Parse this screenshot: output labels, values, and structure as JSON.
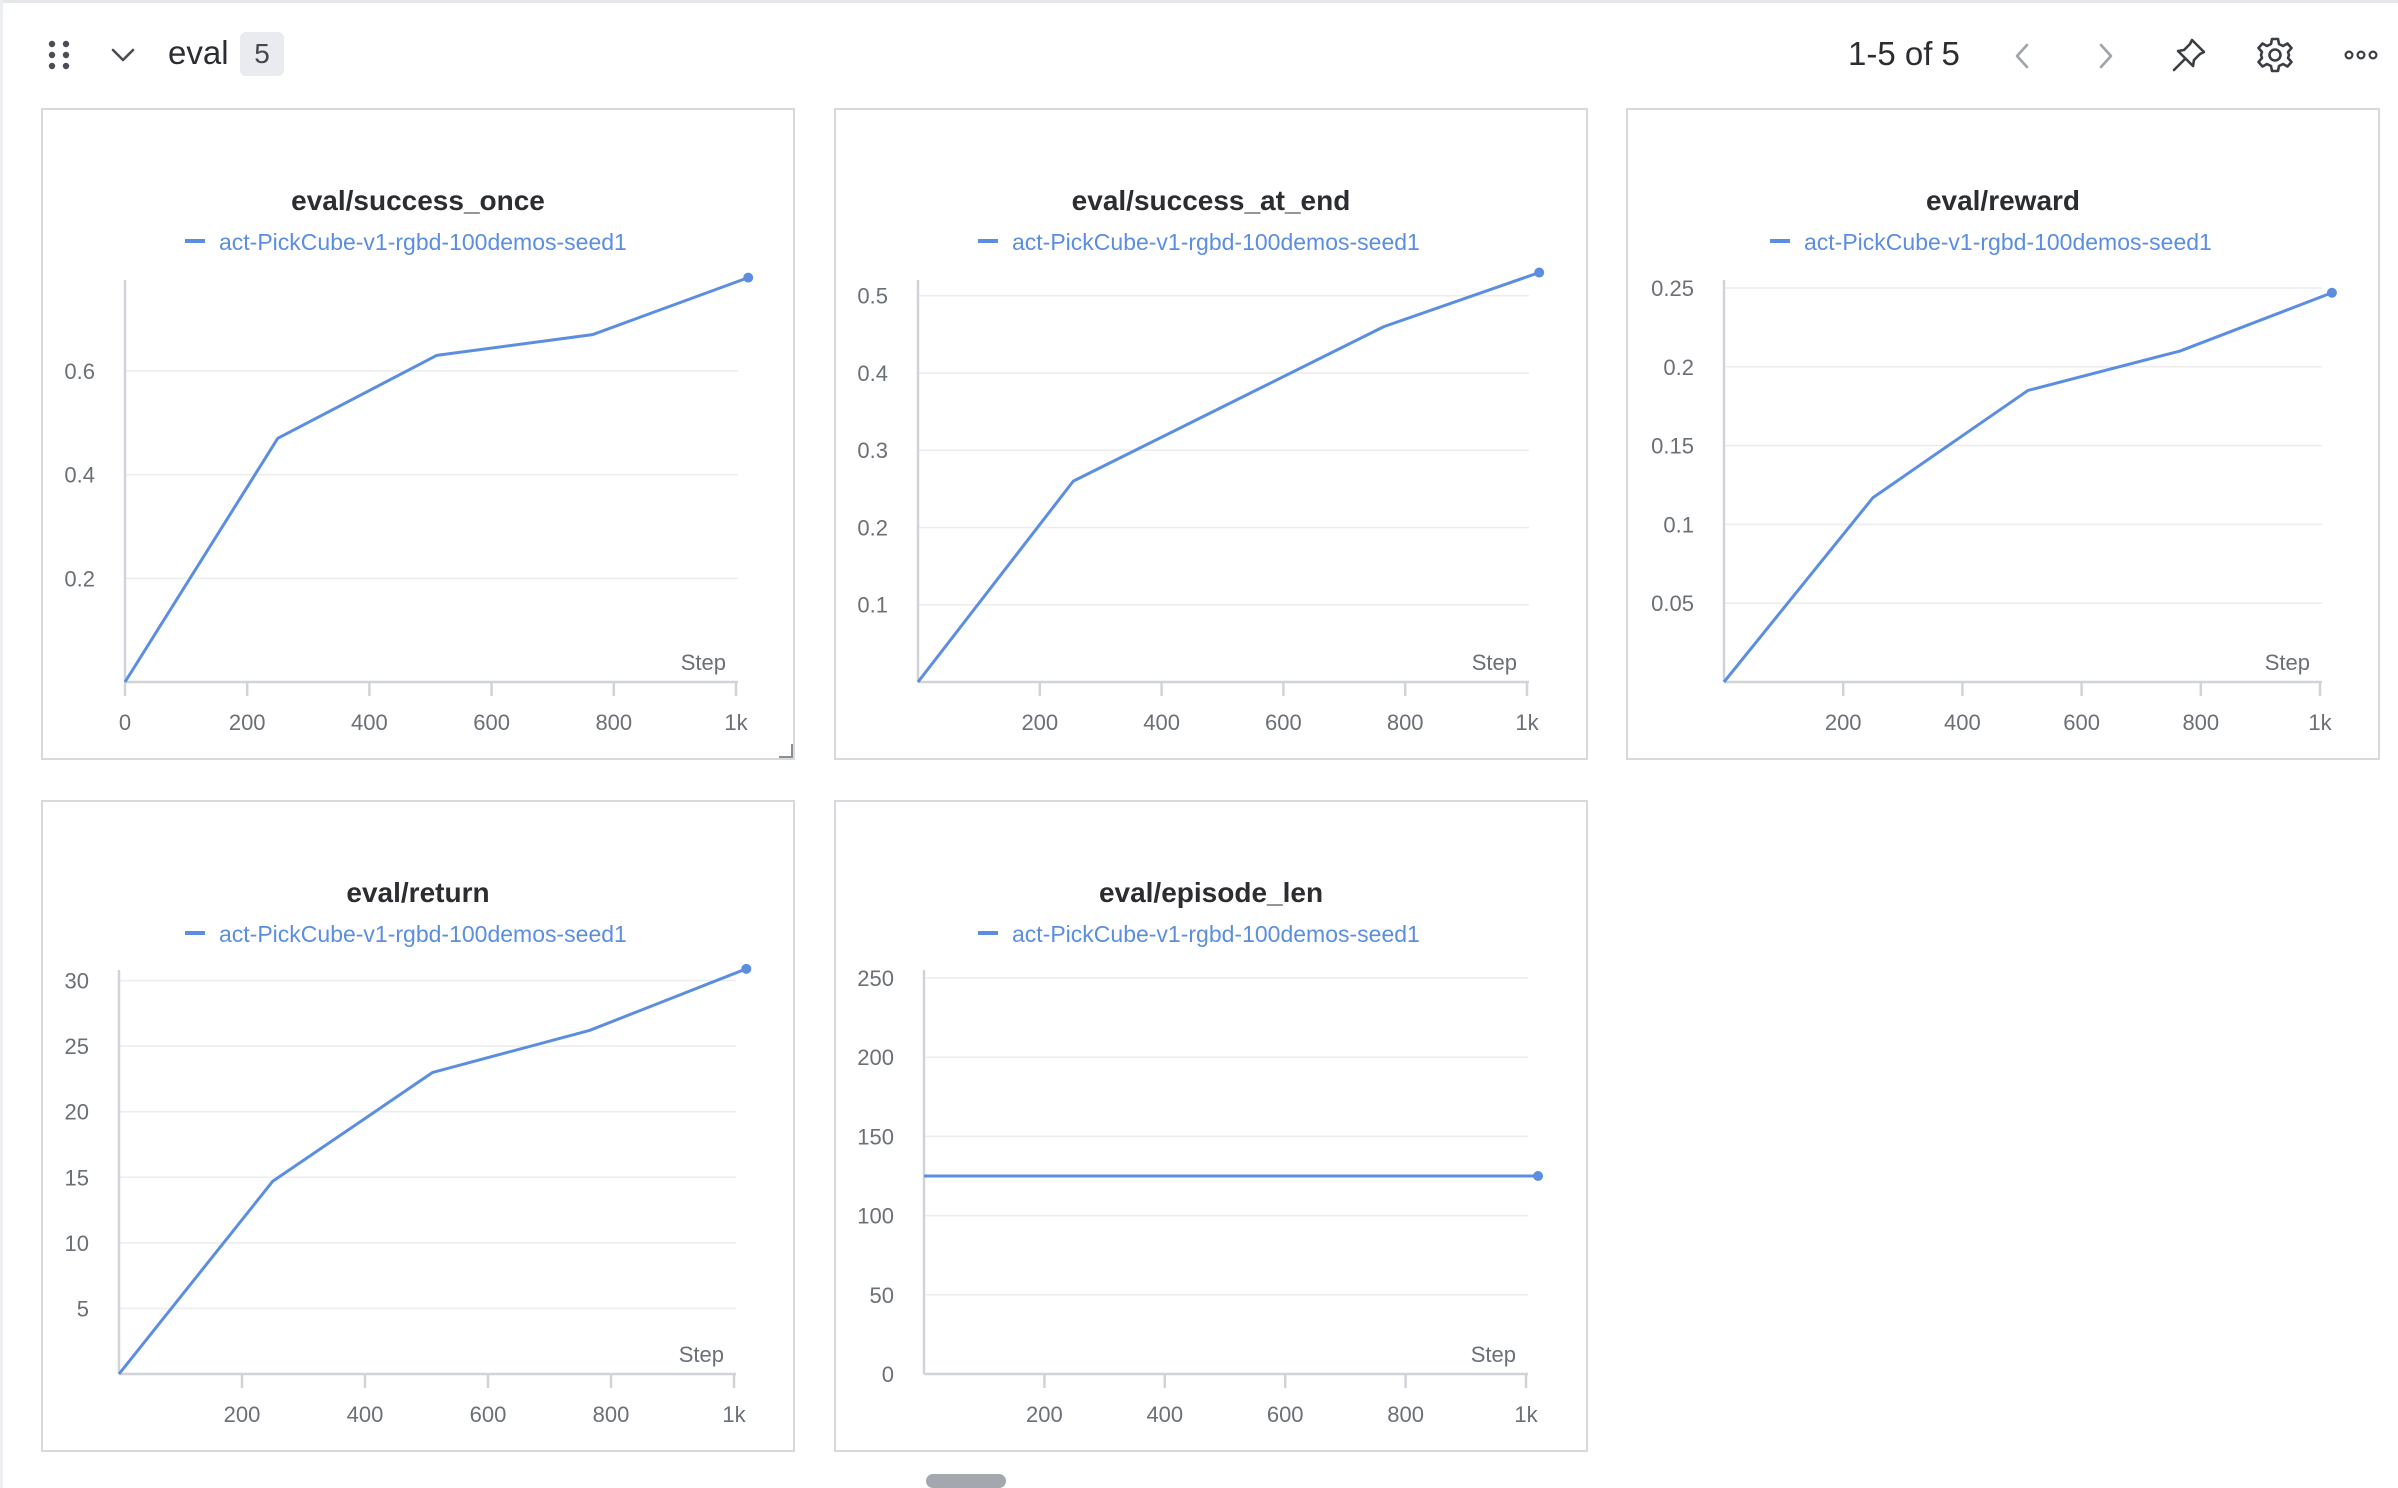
{
  "section": {
    "title": "eval",
    "count": "5"
  },
  "pagination": {
    "label": "1-5 of 5"
  },
  "icons": {
    "drag": "drag-handle-icon",
    "collapse": "chevron-down-icon",
    "prev": "chevron-left-icon",
    "next": "chevron-right-icon",
    "pin": "pin-icon",
    "settings": "gear-icon",
    "more": "more-horizontal-icon"
  },
  "colors": {
    "series": "#5b8ee0",
    "grid": "#ececec",
    "axis": "#d0d3d8",
    "tick_text": "#6b6f76"
  },
  "chart_data": [
    {
      "type": "line",
      "title": "eval/success_once",
      "xlabel": "Step",
      "ylabel": "",
      "legend": "top-center",
      "grid": true,
      "x_ticks": [
        "0",
        "200",
        "400",
        "600",
        "800",
        "1k"
      ],
      "x_tick_values": [
        0,
        200,
        400,
        600,
        800,
        1000
      ],
      "y_ticks": [
        "0.2",
        "0.4",
        "0.6"
      ],
      "y_tick_values": [
        0.2,
        0.4,
        0.6
      ],
      "xlim": [
        0,
        1000
      ],
      "ylim": [
        0.0,
        0.76
      ],
      "series": [
        {
          "name": "act-PickCube-v1-rgbd-100demos-seed1",
          "x": [
            0,
            250,
            510,
            765,
            1020
          ],
          "y": [
            0.0,
            0.47,
            0.63,
            0.67,
            0.78
          ]
        }
      ]
    },
    {
      "type": "line",
      "title": "eval/success_at_end",
      "xlabel": "Step",
      "ylabel": "",
      "legend": "top-center",
      "grid": true,
      "x_ticks": [
        "200",
        "400",
        "600",
        "800",
        "1k"
      ],
      "x_tick_values": [
        200,
        400,
        600,
        800,
        1000
      ],
      "y_ticks": [
        "0.1",
        "0.2",
        "0.3",
        "0.4",
        "0.5"
      ],
      "y_tick_values": [
        0.1,
        0.2,
        0.3,
        0.4,
        0.5
      ],
      "xlim": [
        0,
        1000
      ],
      "ylim": [
        0.0,
        0.51
      ],
      "series": [
        {
          "name": "act-PickCube-v1-rgbd-100demos-seed1",
          "x": [
            0,
            255,
            510,
            765,
            1020
          ],
          "y": [
            0.0,
            0.26,
            0.36,
            0.46,
            0.53
          ]
        }
      ]
    },
    {
      "type": "line",
      "title": "eval/reward",
      "xlabel": "Step",
      "ylabel": "",
      "legend": "top-center",
      "grid": true,
      "x_ticks": [
        "200",
        "400",
        "600",
        "800",
        "1k"
      ],
      "x_tick_values": [
        200,
        400,
        600,
        800,
        1000
      ],
      "y_ticks": [
        "0.05",
        "0.1",
        "0.15",
        "0.2",
        "0.25"
      ],
      "y_tick_values": [
        0.05,
        0.1,
        0.15,
        0.2,
        0.25
      ],
      "xlim": [
        0,
        1000
      ],
      "ylim": [
        0.0,
        0.25
      ],
      "series": [
        {
          "name": "act-PickCube-v1-rgbd-100demos-seed1",
          "x": [
            0,
            250,
            510,
            765,
            1020
          ],
          "y": [
            0.0,
            0.117,
            0.185,
            0.21,
            0.247
          ]
        }
      ]
    },
    {
      "type": "line",
      "title": "eval/return",
      "xlabel": "Step",
      "ylabel": "",
      "legend": "top-center",
      "grid": true,
      "x_ticks": [
        "200",
        "400",
        "600",
        "800",
        "1k"
      ],
      "x_tick_values": [
        200,
        400,
        600,
        800,
        1000
      ],
      "y_ticks": [
        "5",
        "10",
        "15",
        "20",
        "25",
        "30"
      ],
      "y_tick_values": [
        5,
        10,
        15,
        20,
        25,
        30
      ],
      "xlim": [
        0,
        1000
      ],
      "ylim": [
        0.0,
        30.2
      ],
      "series": [
        {
          "name": "act-PickCube-v1-rgbd-100demos-seed1",
          "x": [
            0,
            250,
            510,
            765,
            1020
          ],
          "y": [
            0.0,
            14.7,
            23.0,
            26.2,
            30.9
          ]
        }
      ]
    },
    {
      "type": "line",
      "title": "eval/episode_len",
      "xlabel": "Step",
      "ylabel": "",
      "legend": "top-center",
      "grid": true,
      "x_ticks": [
        "200",
        "400",
        "600",
        "800",
        "1k"
      ],
      "x_tick_values": [
        200,
        400,
        600,
        800,
        1000
      ],
      "y_ticks": [
        "0",
        "50",
        "100",
        "150",
        "200",
        "250"
      ],
      "y_tick_values": [
        0,
        50,
        100,
        150,
        200,
        250
      ],
      "xlim": [
        0,
        1000
      ],
      "ylim": [
        0,
        250
      ],
      "series": [
        {
          "name": "act-PickCube-v1-rgbd-100demos-seed1",
          "x": [
            0,
            1020
          ],
          "y": [
            125,
            125
          ]
        }
      ]
    }
  ]
}
